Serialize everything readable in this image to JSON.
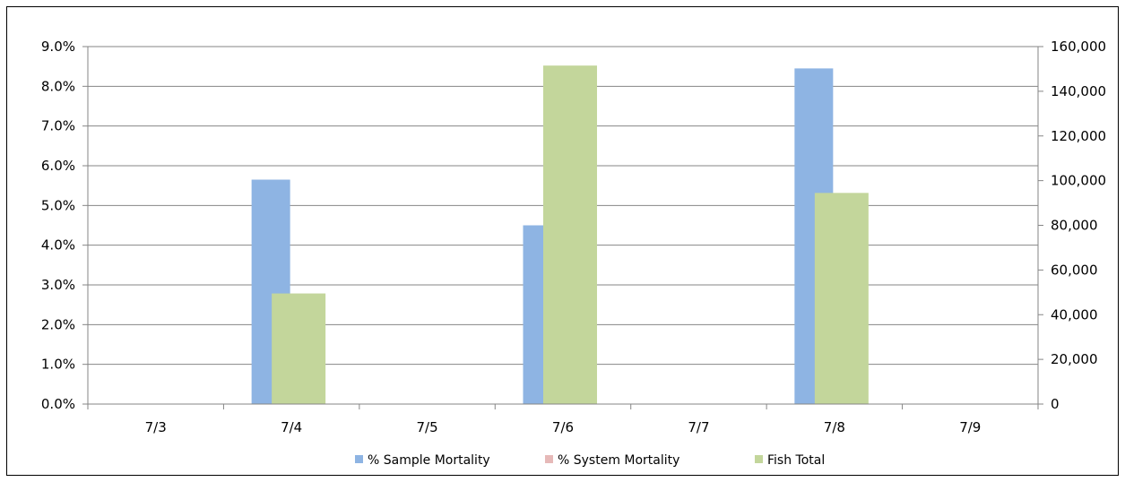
{
  "chart_data": {
    "type": "bar",
    "categories": [
      "7/3",
      "7/4",
      "7/5",
      "7/6",
      "7/7",
      "7/8",
      "7/9"
    ],
    "series": [
      {
        "name": "% Sample Mortality",
        "axis": "left",
        "color": "#8EB4E3",
        "values": [
          0,
          5.65,
          0,
          4.5,
          0,
          8.45,
          0
        ]
      },
      {
        "name": "% System Mortality",
        "axis": "left",
        "color": "#E6B9B8",
        "values": [
          0,
          0.15,
          0,
          0.25,
          0,
          0.35,
          0
        ]
      },
      {
        "name": "Fish Total",
        "axis": "right",
        "color": "#C3D69B",
        "values": [
          0,
          49500,
          0,
          151500,
          0,
          94500,
          0
        ]
      }
    ],
    "y_left": {
      "min": 0,
      "max": 9,
      "step": 1,
      "tick_labels": [
        "0.0%",
        "1.0%",
        "2.0%",
        "3.0%",
        "4.0%",
        "5.0%",
        "6.0%",
        "7.0%",
        "8.0%",
        "9.0%"
      ]
    },
    "y_right": {
      "min": 0,
      "max": 160000,
      "step": 20000,
      "tick_labels": [
        "0",
        "20,000",
        "40,000",
        "60,000",
        "80,000",
        "100,000",
        "120,000",
        "140,000",
        "160,000"
      ]
    },
    "grid": true,
    "legend": "bottom",
    "title": "",
    "xlabel": "",
    "ylabel": ""
  }
}
